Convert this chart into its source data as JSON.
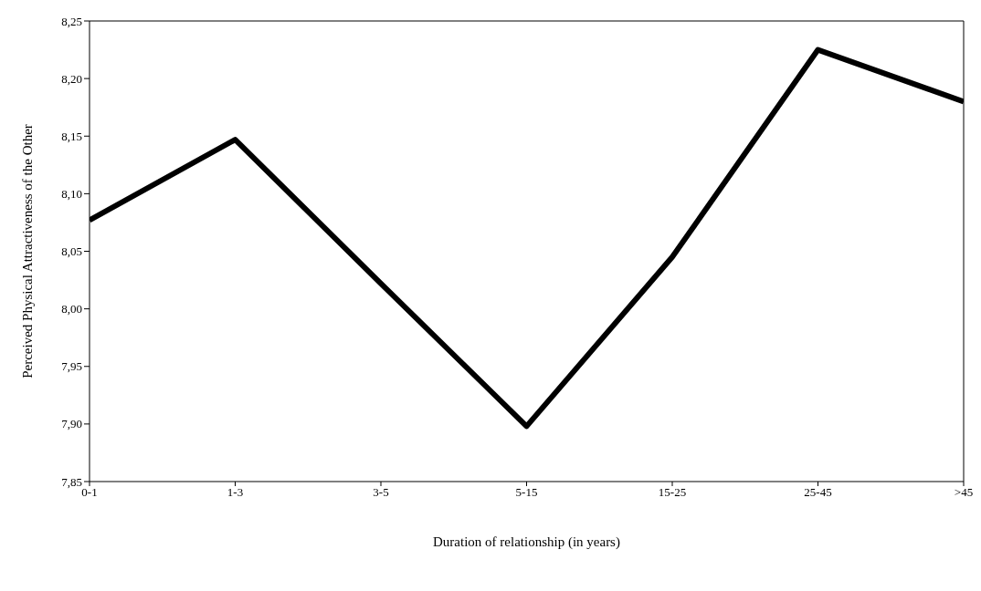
{
  "chart_data": {
    "type": "line",
    "xlabel": "Duration of relationship (in years)",
    "ylabel": "Perceived Physical Attractiveness of the Other",
    "categories": [
      "0-1",
      "1-3",
      "3-5",
      "5-15",
      "15-25",
      "25-45",
      ">45"
    ],
    "series": [
      {
        "color": "#000000",
        "values": [
          8.077,
          8.147,
          8.022,
          7.898,
          8.045,
          8.225,
          8.18
        ]
      }
    ],
    "ylim": [
      7.85,
      8.25
    ],
    "yticks": [
      {
        "value": 7.85,
        "label": "7,85"
      },
      {
        "value": 7.9,
        "label": "7,90"
      },
      {
        "value": 7.95,
        "label": "7,95"
      },
      {
        "value": 8.0,
        "label": "8,00"
      },
      {
        "value": 8.05,
        "label": "8,05"
      },
      {
        "value": 8.1,
        "label": "8,10"
      },
      {
        "value": 8.15,
        "label": "8,15"
      },
      {
        "value": 8.2,
        "label": "8,20"
      },
      {
        "value": 8.25,
        "label": "8,25"
      }
    ],
    "grid": false,
    "marker": "none",
    "line_style": "solid"
  }
}
